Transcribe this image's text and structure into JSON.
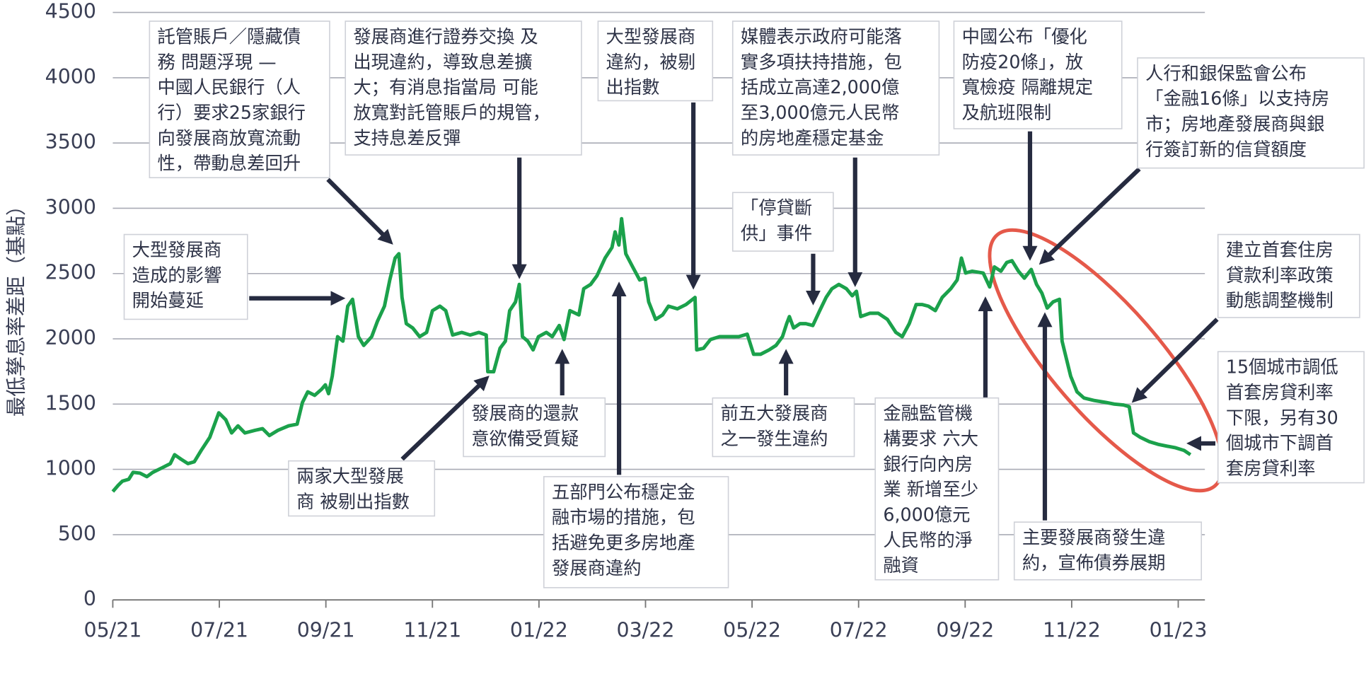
{
  "chart_data": {
    "type": "line",
    "ylabel": "最低孳息率差距（基點）",
    "color": "#1ba14b",
    "grid": true,
    "xlim": [
      0,
      20.5
    ],
    "xticks": [
      {
        "value": 0,
        "label": "05/21"
      },
      {
        "value": 2,
        "label": "07/21"
      },
      {
        "value": 4,
        "label": "09/21"
      },
      {
        "value": 6,
        "label": "11/21"
      },
      {
        "value": 8,
        "label": "01/22"
      },
      {
        "value": 10,
        "label": "03/22"
      },
      {
        "value": 12,
        "label": "05/22"
      },
      {
        "value": 14,
        "label": "07/22"
      },
      {
        "value": 16,
        "label": "09/22"
      },
      {
        "value": 18,
        "label": "11/22"
      },
      {
        "value": 20,
        "label": "01/23"
      }
    ],
    "ylim": [
      0,
      4500
    ],
    "yticks": [
      0,
      500,
      1000,
      1500,
      2000,
      2500,
      3000,
      3500,
      4000,
      4500
    ],
    "x": [
      0,
      0.1,
      0.18,
      0.3,
      0.38,
      0.51,
      0.64,
      0.75,
      0.92,
      1.08,
      1.16,
      1.28,
      1.41,
      1.53,
      1.66,
      1.82,
      1.99,
      2.12,
      2.23,
      2.35,
      2.48,
      2.67,
      2.81,
      2.94,
      3.1,
      3.3,
      3.46,
      3.56,
      3.66,
      3.79,
      3.92,
      3.99,
      4.05,
      4.12,
      4.22,
      4.32,
      4.41,
      4.5,
      4.61,
      4.71,
      4.86,
      4.97,
      5.1,
      5.2,
      5.3,
      5.37,
      5.43,
      5.51,
      5.63,
      5.76,
      5.89,
      6.0,
      6.14,
      6.25,
      6.38,
      6.55,
      6.71,
      6.87,
      7.01,
      7.04,
      7.15,
      7.27,
      7.37,
      7.45,
      7.56,
      7.63,
      7.69,
      7.79,
      7.89,
      7.99,
      8.14,
      8.25,
      8.38,
      8.47,
      8.58,
      8.75,
      8.84,
      8.97,
      9.09,
      9.24,
      9.37,
      9.43,
      9.5,
      9.55,
      9.63,
      9.76,
      9.89,
      9.99,
      10.06,
      10.19,
      10.32,
      10.43,
      10.6,
      10.76,
      10.93,
      10.96,
      11.09,
      11.22,
      11.39,
      11.58,
      11.75,
      11.91,
      12.03,
      12.16,
      12.32,
      12.45,
      12.57,
      12.65,
      12.7,
      12.78,
      12.9,
      13.01,
      13.14,
      13.27,
      13.39,
      13.5,
      13.63,
      13.77,
      13.88,
      13.96,
      14.04,
      14.21,
      14.37,
      14.54,
      14.7,
      14.82,
      14.95,
      15.08,
      15.19,
      15.31,
      15.44,
      15.57,
      15.73,
      15.85,
      15.93,
      16.01,
      16.13,
      16.34,
      16.46,
      16.55,
      16.67,
      16.78,
      16.88,
      17.0,
      17.11,
      17.24,
      17.34,
      17.44,
      17.54,
      17.65,
      17.77,
      17.82,
      17.9,
      17.98,
      18.1,
      18.23,
      18.43,
      18.64,
      18.8,
      18.97,
      19.08,
      19.16,
      19.29,
      19.46,
      19.62,
      19.79,
      19.95,
      20.11,
      20.23
    ],
    "values": [
      830,
      877,
      910,
      924,
      977,
      971,
      944,
      977,
      1011,
      1044,
      1112,
      1078,
      1044,
      1058,
      1145,
      1245,
      1433,
      1380,
      1279,
      1333,
      1279,
      1299,
      1312,
      1259,
      1299,
      1333,
      1346,
      1513,
      1594,
      1567,
      1614,
      1647,
      1580,
      1714,
      2016,
      1982,
      2250,
      2303,
      2016,
      1949,
      2016,
      2136,
      2250,
      2451,
      2618,
      2652,
      2317,
      2116,
      2083,
      2016,
      2049,
      2216,
      2250,
      2216,
      2029,
      2049,
      2029,
      2049,
      2029,
      1748,
      1748,
      1928,
      1982,
      2216,
      2283,
      2417,
      2016,
      1982,
      1915,
      2016,
      2049,
      2016,
      2102,
      1995,
      2216,
      2183,
      2384,
      2417,
      2484,
      2618,
      2699,
      2819,
      2719,
      2920,
      2652,
      2551,
      2451,
      2464,
      2283,
      2149,
      2183,
      2250,
      2230,
      2263,
      2317,
      1915,
      1928,
      1995,
      2016,
      2016,
      2016,
      2036,
      1882,
      1882,
      1915,
      1949,
      2016,
      2116,
      2170,
      2083,
      2116,
      2116,
      2102,
      2216,
      2317,
      2384,
      2417,
      2384,
      2330,
      2364,
      2170,
      2196,
      2196,
      2149,
      2049,
      2016,
      2116,
      2263,
      2263,
      2250,
      2216,
      2317,
      2384,
      2451,
      2618,
      2504,
      2518,
      2504,
      2397,
      2551,
      2518,
      2585,
      2598,
      2518,
      2464,
      2531,
      2417,
      2350,
      2236,
      2283,
      2303,
      1982,
      1848,
      1714,
      1594,
      1547,
      1527,
      1513,
      1500,
      1493,
      1480,
      1279,
      1245,
      1212,
      1192,
      1178,
      1165,
      1145,
      1112
    ],
    "annotations": [
      {
        "lines": [
          "託管賬戶／隱藏債",
          "務 問題浮現 —",
          "中國人民銀行（人",
          "行）要求25家銀行",
          "向發展商放寬流動",
          "性，帶動息差回升"
        ]
      },
      {
        "lines": [
          "發展商進行證券交換 及",
          "出現違約，導致息差擴",
          "大；有消息指當局 可能",
          "放寬對託管賬戶的規管，",
          "支持息差反彈"
        ]
      },
      {
        "lines": [
          "大型發展商",
          "違約，被剔",
          "出指數"
        ]
      },
      {
        "lines": [
          "媒體表示政府可能落",
          "實多項扶持措施，包",
          "括成立高達2,000億",
          "至3,000億元人民幣",
          "的房地產穩定基金"
        ]
      },
      {
        "lines": [
          "中國公布「優化",
          "防疫20條」，放",
          "寬檢疫 隔離規定",
          "及航班限制"
        ]
      },
      {
        "lines": [
          "人行和銀保監會公布",
          "「金融16條」以支持房",
          "市；房地產發展商與銀",
          "行簽訂新的信貸額度"
        ]
      },
      {
        "lines": [
          "大型發展商",
          "造成的影響",
          "開始蔓延"
        ]
      },
      {
        "lines": [
          "「停貸斷",
          "供」事件"
        ]
      },
      {
        "lines": [
          "建立首套住房",
          "貸款利率政策",
          "動態調整機制"
        ]
      },
      {
        "lines": [
          "15個城市調低",
          "首套房貸利率",
          "下限，另有30",
          "個城市下調首",
          "套房貸利率"
        ]
      },
      {
        "lines": [
          "發展商的還款",
          "意欲備受質疑"
        ]
      },
      {
        "lines": [
          "兩家大型發展",
          "商 被剔出指數"
        ]
      },
      {
        "lines": [
          "五部門公布穩定金",
          "融市場的措施，包",
          "括避免更多房地產",
          "發展商違約"
        ]
      },
      {
        "lines": [
          "前五大發展商",
          "之一發生違約"
        ]
      },
      {
        "lines": [
          "金融監管機",
          "構要求 六大",
          "銀行向內房",
          "業 新增至少",
          "6,000億元",
          "人民幣的淨",
          "融資"
        ]
      },
      {
        "lines": [
          "主要發展商發生違",
          "約，宣佈債券展期"
        ]
      }
    ]
  }
}
